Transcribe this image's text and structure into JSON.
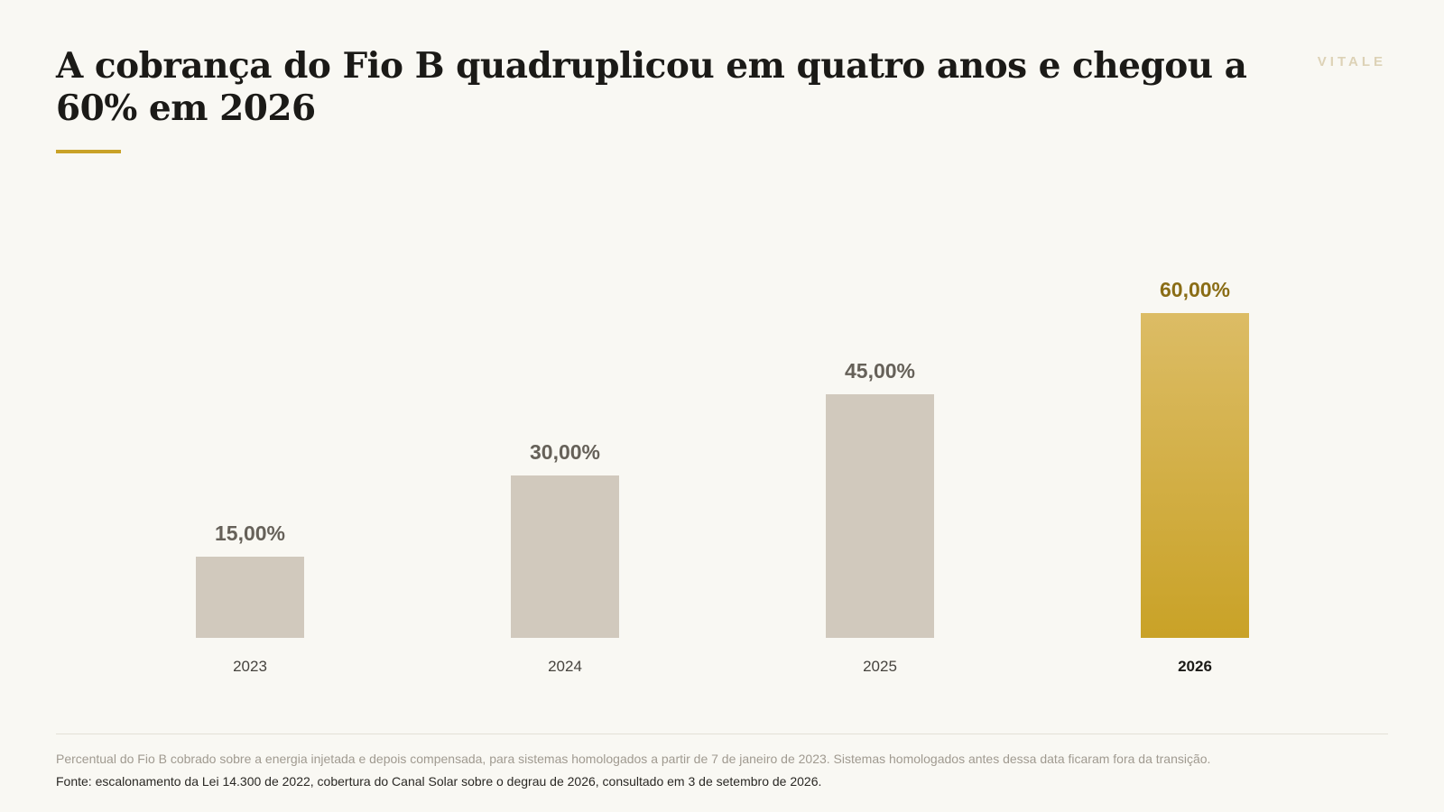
{
  "header": {
    "title": "A cobrança do Fio B quadruplicou em quatro anos e chegou a 60% em 2026",
    "brand": "VITALE"
  },
  "chart_data": {
    "type": "bar",
    "categories": [
      "2023",
      "2024",
      "2025",
      "2026"
    ],
    "values": [
      15,
      30,
      45,
      60
    ],
    "value_labels": [
      "15,00%",
      "30,00%",
      "45,00%",
      "60,00%"
    ],
    "highlight_category": "2026",
    "ylim": [
      0,
      60
    ],
    "grid": false,
    "title": "",
    "xlabel": "",
    "ylabel": "",
    "colors": {
      "bar": "#d1c9bd",
      "highlight_bar_top": "#dcbc65",
      "highlight_bar_bottom": "#c9a227",
      "value_label": "#666159",
      "highlight_value_label": "#8a6d15",
      "tick_label": "#46433e",
      "highlight_tick_label": "#1b1a17"
    }
  },
  "footer": {
    "note": "Percentual do Fio B cobrado sobre a energia injetada e depois compensada, para sistemas homologados a partir de 7 de janeiro de 2023. Sistemas homologados antes dessa data ficaram fora da transição.",
    "source": "Fonte: escalonamento da Lei 14.300 de 2022, cobertura do Canal Solar sobre o degrau de 2026, consultado em 3 de setembro de 2026."
  }
}
